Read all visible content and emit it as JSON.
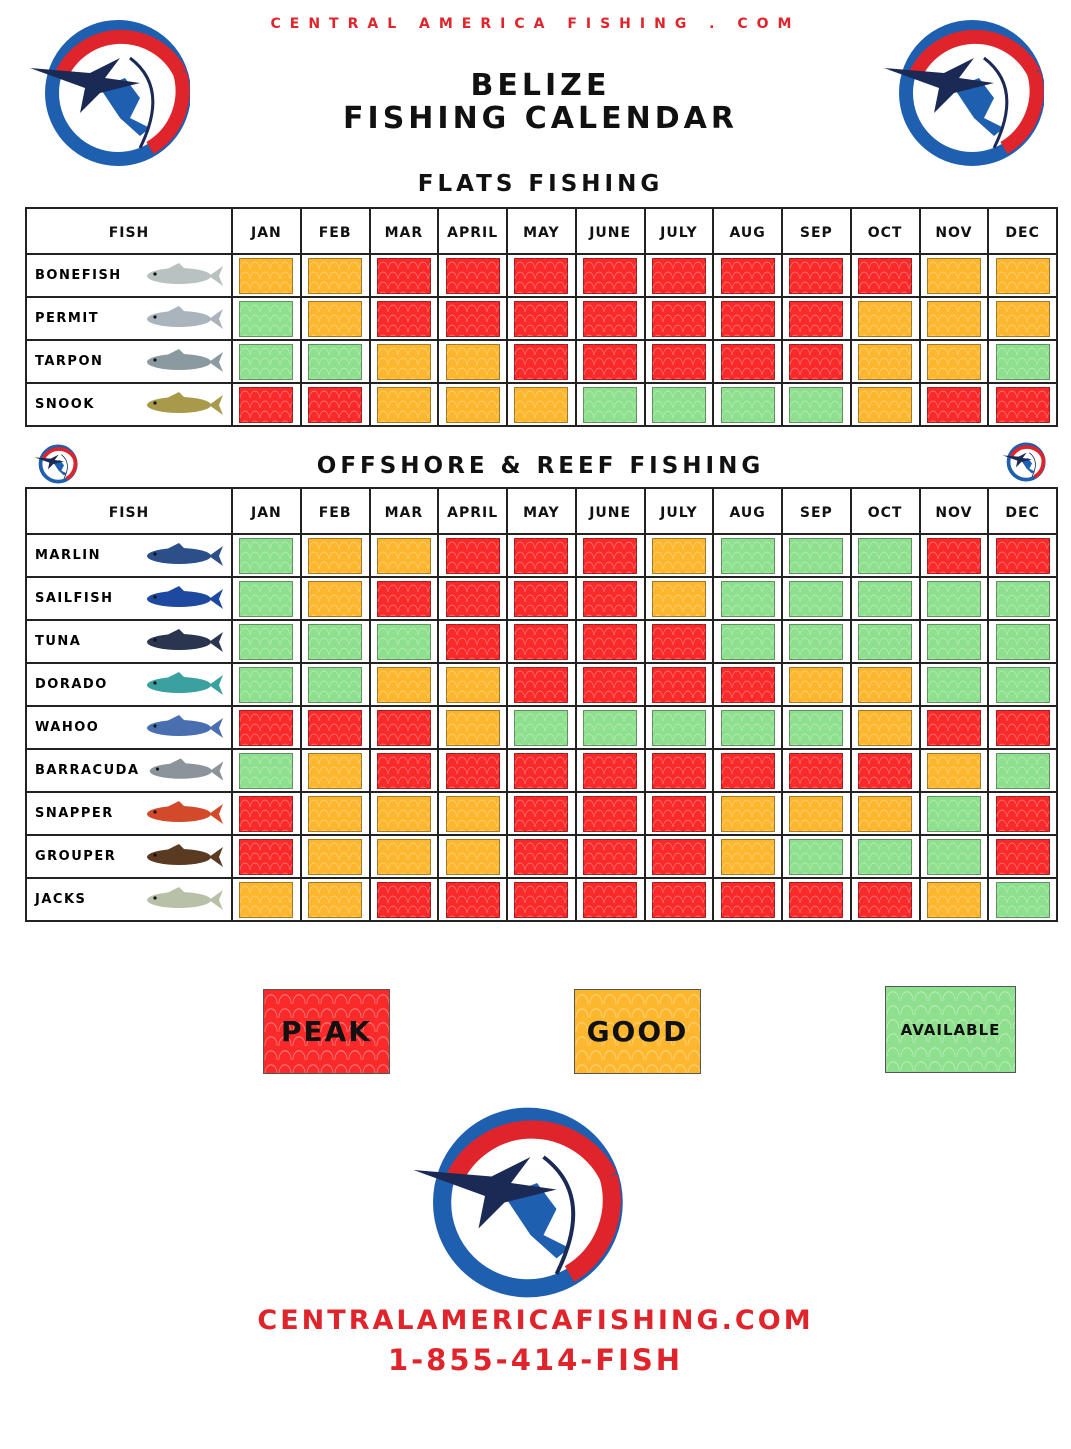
{
  "site_header": "CENTRAL AMERICA FISHING . COM",
  "title_line1": "BELIZE",
  "title_line2": "FISHING CALENDAR",
  "colors": {
    "peak": "#fb2a2a",
    "good": "#fdb72e",
    "available": "#8ee08e",
    "brand_red": "#e0242b",
    "brand_blue": "#1f5fb0"
  },
  "logo": {
    "text": "CENTRAL AMERICA FISHING",
    "icon": "marlin-map-logo"
  },
  "months": [
    "JAN",
    "FEB",
    "MAR",
    "APRIL",
    "MAY",
    "JUNE",
    "JULY",
    "AUG",
    "SEP",
    "OCT",
    "NOV",
    "DEC"
  ],
  "fish_header": "FISH",
  "flats": {
    "title": "FLATS FISHING",
    "rows": [
      {
        "fish": "BONEFISH",
        "icon": "bonefish-icon",
        "ratings": [
          "good",
          "good",
          "peak",
          "peak",
          "peak",
          "peak",
          "peak",
          "peak",
          "peak",
          "peak",
          "good",
          "good"
        ]
      },
      {
        "fish": "PERMIT",
        "icon": "permit-icon",
        "ratings": [
          "available",
          "good",
          "peak",
          "peak",
          "peak",
          "peak",
          "peak",
          "peak",
          "peak",
          "good",
          "good",
          "good"
        ]
      },
      {
        "fish": "TARPON",
        "icon": "tarpon-icon",
        "ratings": [
          "available",
          "available",
          "good",
          "good",
          "peak",
          "peak",
          "peak",
          "peak",
          "peak",
          "good",
          "good",
          "available"
        ]
      },
      {
        "fish": "SNOOK",
        "icon": "snook-icon",
        "ratings": [
          "peak",
          "peak",
          "good",
          "good",
          "good",
          "available",
          "available",
          "available",
          "available",
          "good",
          "peak",
          "peak"
        ]
      }
    ]
  },
  "offshore": {
    "title": "OFFSHORE & REEF FISHING",
    "rows": [
      {
        "fish": "MARLIN",
        "icon": "marlin-icon",
        "ratings": [
          "available",
          "good",
          "good",
          "peak",
          "peak",
          "peak",
          "good",
          "available",
          "available",
          "available",
          "peak",
          "peak"
        ]
      },
      {
        "fish": "SAILFISH",
        "icon": "sailfish-icon",
        "ratings": [
          "available",
          "good",
          "peak",
          "peak",
          "peak",
          "peak",
          "good",
          "available",
          "available",
          "available",
          "available",
          "available"
        ]
      },
      {
        "fish": "TUNA",
        "icon": "tuna-icon",
        "ratings": [
          "available",
          "available",
          "available",
          "peak",
          "peak",
          "peak",
          "peak",
          "available",
          "available",
          "available",
          "available",
          "available"
        ]
      },
      {
        "fish": "DORADO",
        "icon": "dorado-icon",
        "ratings": [
          "available",
          "available",
          "good",
          "good",
          "peak",
          "peak",
          "peak",
          "peak",
          "good",
          "good",
          "available",
          "available"
        ]
      },
      {
        "fish": "WAHOO",
        "icon": "wahoo-icon",
        "ratings": [
          "peak",
          "peak",
          "peak",
          "good",
          "available",
          "available",
          "available",
          "available",
          "available",
          "good",
          "peak",
          "peak"
        ]
      },
      {
        "fish": "BARRACUDA",
        "icon": "barracuda-icon",
        "ratings": [
          "available",
          "good",
          "peak",
          "peak",
          "peak",
          "peak",
          "peak",
          "peak",
          "peak",
          "peak",
          "good",
          "available"
        ]
      },
      {
        "fish": "SNAPPER",
        "icon": "snapper-icon",
        "ratings": [
          "peak",
          "good",
          "good",
          "good",
          "peak",
          "peak",
          "peak",
          "good",
          "good",
          "good",
          "available",
          "peak"
        ]
      },
      {
        "fish": "GROUPER",
        "icon": "grouper-icon",
        "ratings": [
          "peak",
          "good",
          "good",
          "good",
          "peak",
          "peak",
          "peak",
          "good",
          "available",
          "available",
          "available",
          "peak"
        ]
      },
      {
        "fish": "JACKS",
        "icon": "jacks-icon",
        "ratings": [
          "good",
          "good",
          "peak",
          "peak",
          "peak",
          "peak",
          "peak",
          "peak",
          "peak",
          "peak",
          "good",
          "available"
        ]
      }
    ]
  },
  "legend": {
    "peak": "PEAK",
    "good": "GOOD",
    "available": "AVAILABLE"
  },
  "footer": {
    "website": "CENTRALAMERICAFISHING.COM",
    "phone": "1-855-414-FISH"
  }
}
